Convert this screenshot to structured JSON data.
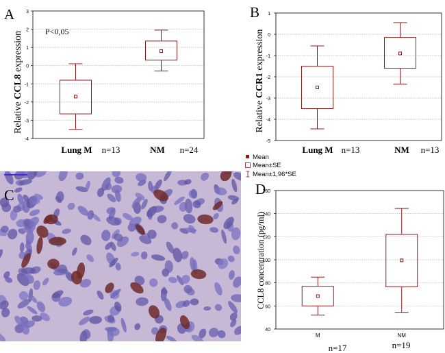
{
  "panels": {
    "A": {
      "label": "A",
      "ylabel_prefix": "Relative ",
      "ylabel_gene": "CCL8",
      "ylabel_suffix": " expression",
      "annotation": "P<0,05",
      "categories": [
        "Lung M",
        "NM"
      ],
      "n_labels": [
        "n=13",
        "n=24"
      ],
      "yticks": [
        "-4",
        "-3",
        "-2",
        "-1",
        "0",
        "1",
        "2",
        "3"
      ]
    },
    "B": {
      "label": "B",
      "ylabel_prefix": "Relative ",
      "ylabel_gene": "CCR1",
      "ylabel_suffix": " expression",
      "categories": [
        "Lung M",
        "NM"
      ],
      "n_labels": [
        "n=13",
        "n=13"
      ],
      "yticks": [
        "-5",
        "-4",
        "-3",
        "-2",
        "-1",
        "0",
        "1"
      ]
    },
    "C": {
      "label": "C"
    },
    "D": {
      "label": "D",
      "ylabel": "CCL8 concentration (pg/ml)",
      "categories": [
        "M",
        "NM"
      ],
      "n_labels": [
        "n=17",
        "n=19"
      ],
      "yticks": [
        "40",
        "60",
        "80",
        "100",
        "120",
        "140",
        "160"
      ]
    }
  },
  "legend": {
    "mean": "Mean",
    "se": "Mean±SE",
    "ci": "Mean±1,96*SE"
  },
  "colors": {
    "box": "#8b1a1a",
    "grid": "#b0b0b0",
    "tissue_base": "#c7b9d6"
  },
  "chart_data": [
    {
      "type": "box",
      "panel": "A",
      "ylabel": "Relative CCL8 expression",
      "ylim": [
        -4,
        3
      ],
      "grid": true,
      "categories": [
        "Lung M",
        "NM"
      ],
      "series": [
        {
          "category": "Lung M",
          "mean": -1.7,
          "se_low": -2.65,
          "se_high": -0.8,
          "ci_low": -3.5,
          "ci_high": 0.1
        },
        {
          "category": "NM",
          "mean": 0.8,
          "se_low": 0.3,
          "se_high": 1.35,
          "ci_low": -0.3,
          "ci_high": 1.95
        }
      ]
    },
    {
      "type": "box",
      "panel": "B",
      "ylabel": "Relative CCR1 expression",
      "ylim": [
        -5,
        1
      ],
      "grid": true,
      "categories": [
        "Lung M",
        "NM"
      ],
      "series": [
        {
          "category": "Lung M",
          "mean": -2.5,
          "se_low": -3.5,
          "se_high": -1.5,
          "ci_low": -4.45,
          "ci_high": -0.55
        },
        {
          "category": "NM",
          "mean": -0.9,
          "se_low": -1.6,
          "se_high": -0.15,
          "ci_low": -2.35,
          "ci_high": 0.55
        }
      ]
    },
    {
      "type": "box",
      "panel": "D",
      "ylabel": "CCL8 concentration (pg/ml)",
      "ylim": [
        40,
        160
      ],
      "grid": true,
      "categories": [
        "M",
        "NM"
      ],
      "series": [
        {
          "category": "M",
          "mean": 68.5,
          "se_low": 60,
          "se_high": 77,
          "ci_low": 52,
          "ci_high": 85
        },
        {
          "category": "NM",
          "mean": 99.5,
          "se_low": 76.5,
          "se_high": 122,
          "ci_low": 54.5,
          "ci_high": 144.5
        }
      ]
    }
  ]
}
